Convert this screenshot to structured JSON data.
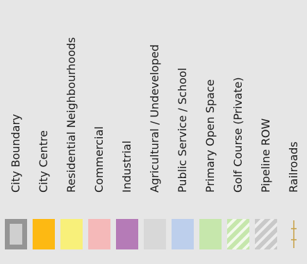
{
  "legend": {
    "items": [
      {
        "label": "City Boundary",
        "swatch": "boundary",
        "color": "#959595",
        "fill": "#cfcfcf",
        "icon": "boundary-swatch"
      },
      {
        "label": "City Centre",
        "swatch": "solid",
        "color": "#fdb913",
        "icon": "city-centre-swatch"
      },
      {
        "label": "Residential Neighbourhoods",
        "swatch": "solid",
        "color": "#f8f07a",
        "icon": "residential-swatch"
      },
      {
        "label": "Commercial",
        "swatch": "solid",
        "color": "#f5b9b9",
        "icon": "commercial-swatch"
      },
      {
        "label": "Industrial",
        "swatch": "solid",
        "color": "#b57bb7",
        "icon": "industrial-swatch"
      },
      {
        "label": "Agricultural / Undeveloped",
        "swatch": "solid",
        "color": "#d8d8d8",
        "icon": "agricultural-swatch"
      },
      {
        "label": "Public Service / School",
        "swatch": "solid",
        "color": "#bdcfec",
        "icon": "public-service-swatch"
      },
      {
        "label": "Primary Open Space",
        "swatch": "solid",
        "color": "#c6e7ac",
        "icon": "open-space-swatch"
      },
      {
        "label": "Golf Course (Private)",
        "swatch": "hatch-green",
        "color": "#c6e7ac",
        "icon": "golf-course-hatch-swatch"
      },
      {
        "label": "Pipeline ROW",
        "swatch": "hatch-grey",
        "color": "#c9c9c9",
        "icon": "pipeline-hatch-swatch"
      },
      {
        "label": "Railroads",
        "swatch": "rail",
        "color": "#c8a24a",
        "icon": "railroad-line-icon"
      }
    ]
  }
}
